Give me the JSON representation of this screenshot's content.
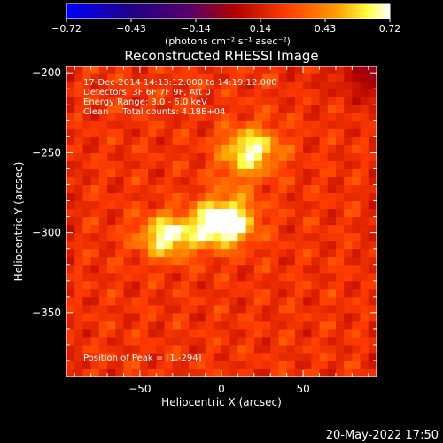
{
  "chart_data": {
    "type": "heatmap",
    "title": "Reconstructed RHESSI Image",
    "xlabel": "Heliocentric X (arcsec)",
    "ylabel": "Heliocentric Y (arcsec)",
    "xlim": [
      -95,
      95
    ],
    "ylim": [
      -390,
      -196
    ],
    "xticks": [
      -50,
      0,
      50
    ],
    "yticks": [
      -200,
      -250,
      -300,
      -350
    ],
    "colorbar": {
      "ticks": [
        "-0.72",
        "-0.43",
        "-0.14",
        "0.14",
        "0.43",
        "0.72"
      ],
      "min": -0.72,
      "max": 0.72,
      "units_label": "(photons cm⁻² s⁻¹ asec⁻²)"
    },
    "info_lines": [
      "17-Dec-2014 14:13:12.000 to 14:19:12.000",
      "Detectors: 3F 6F 7F 9F, Att 0",
      "Energy Range: 3.0 - 6.0 keV",
      "Clean     Total counts: 4.18E+04"
    ],
    "peak_label": "Position of Peak = [1,-294]",
    "peak": {
      "x": 1,
      "y": -294,
      "value": 0.72
    },
    "sources": [
      {
        "x": 1,
        "y": -294,
        "amplitude": 0.72
      },
      {
        "x": -33,
        "y": -302,
        "amplitude": 0.5
      },
      {
        "x": 18,
        "y": -248,
        "amplitude": 0.4
      }
    ],
    "background_level": 0.22,
    "upper_right_level": -0.05
  },
  "timestamp": "20-May-2022 17:50"
}
